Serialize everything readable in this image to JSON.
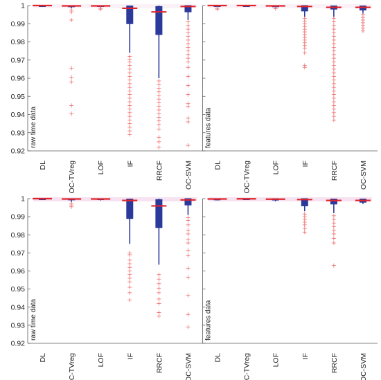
{
  "chart_data": {
    "type": "boxplot",
    "ylim": [
      0.92,
      1.0
    ],
    "yticks": [
      "0.92",
      "0.93",
      "0.94",
      "0.95",
      "0.96",
      "0.97",
      "0.98",
      "0.99",
      "1"
    ],
    "categories": [
      "DL",
      "OC-TVreg",
      "LOF",
      "IF",
      "RRCF",
      "OC-SVM"
    ],
    "rows": [
      {
        "panels": [
          {
            "ylabel": "raw time data",
            "boxes": [
              {
                "category": "DL",
                "q1": 0.9998,
                "median": 1.0,
                "q3": 1.0,
                "whisker_low": 0.9995,
                "whisker_high": 1.0,
                "outliers": []
              },
              {
                "category": "OC-TVreg",
                "q1": 0.9993,
                "median": 0.9998,
                "q3": 1.0,
                "whisker_low": 0.9985,
                "whisker_high": 1.0,
                "outliers": [
                  0.9975,
                  0.9965,
                  0.992,
                  0.9655,
                  0.9605,
                  0.958,
                  0.945,
                  0.9405
                ]
              },
              {
                "category": "LOF",
                "q1": 0.9995,
                "median": 0.9998,
                "q3": 1.0,
                "whisker_low": 0.999,
                "whisker_high": 1.0,
                "outliers": [
                  0.9985,
                  0.998
                ]
              },
              {
                "category": "IF",
                "q1": 0.99,
                "median": 0.9985,
                "q3": 0.9998,
                "whisker_low": 0.974,
                "whisker_high": 1.0,
                "outliers": [
                  0.972,
                  0.9705,
                  0.969,
                  0.967,
                  0.965,
                  0.963,
                  0.961,
                  0.959,
                  0.957,
                  0.955,
                  0.953,
                  0.951,
                  0.949,
                  0.947,
                  0.945,
                  0.943,
                  0.941,
                  0.939,
                  0.937,
                  0.935,
                  0.933,
                  0.931,
                  0.929
                ]
              },
              {
                "category": "RRCF",
                "q1": 0.984,
                "median": 0.9965,
                "q3": 0.9995,
                "whisker_low": 0.96,
                "whisker_high": 1.0,
                "outliers": [
                  0.9585,
                  0.9565,
                  0.9545,
                  0.9525,
                  0.9505,
                  0.9485,
                  0.9465,
                  0.9445,
                  0.9425,
                  0.9405,
                  0.9385,
                  0.9365,
                  0.9345,
                  0.932,
                  0.9275,
                  0.925,
                  0.922
                ]
              },
              {
                "category": "OC-SVM",
                "q1": 0.9965,
                "median": 0.9995,
                "q3": 1.0,
                "whisker_low": 0.992,
                "whisker_high": 1.0,
                "outliers": [
                  0.991,
                  0.989,
                  0.987,
                  0.985,
                  0.983,
                  0.981,
                  0.979,
                  0.977,
                  0.975,
                  0.973,
                  0.971,
                  0.969,
                  0.966,
                  0.961,
                  0.956,
                  0.951,
                  0.946,
                  0.9445,
                  0.938,
                  0.936,
                  0.923
                ]
              }
            ]
          },
          {
            "ylabel": "features data",
            "boxes": [
              {
                "category": "DL",
                "q1": 0.9997,
                "median": 1.0,
                "q3": 1.0,
                "whisker_low": 0.9993,
                "whisker_high": 1.0,
                "outliers": [
                  0.9985,
                  0.998
                ]
              },
              {
                "category": "OC-TVreg",
                "q1": 0.9999,
                "median": 1.0,
                "q3": 1.0,
                "whisker_low": 0.9998,
                "whisker_high": 1.0,
                "outliers": []
              },
              {
                "category": "LOF",
                "q1": 0.9993,
                "median": 0.9998,
                "q3": 1.0,
                "whisker_low": 0.9988,
                "whisker_high": 1.0,
                "outliers": [
                  0.9983
                ]
              },
              {
                "category": "IF",
                "q1": 0.997,
                "median": 0.9995,
                "q3": 1.0,
                "whisker_low": 0.9935,
                "whisker_high": 1.0,
                "outliers": [
                  0.993,
                  0.9915,
                  0.99,
                  0.9885,
                  0.987,
                  0.9855,
                  0.984,
                  0.9825,
                  0.981,
                  0.9795,
                  0.978,
                  0.9765,
                  0.974,
                  0.967,
                  0.966
                ]
              },
              {
                "category": "RRCF",
                "q1": 0.998,
                "median": 0.999,
                "q3": 0.9998,
                "whisker_low": 0.9935,
                "whisker_high": 1.0,
                "outliers": [
                  0.993,
                  0.991,
                  0.989,
                  0.987,
                  0.985,
                  0.983,
                  0.981,
                  0.979,
                  0.977,
                  0.975,
                  0.973,
                  0.971,
                  0.969,
                  0.967,
                  0.965,
                  0.963,
                  0.961,
                  0.959,
                  0.957,
                  0.955,
                  0.953,
                  0.951,
                  0.949,
                  0.947,
                  0.945,
                  0.943,
                  0.941,
                  0.939,
                  0.937
                ]
              },
              {
                "category": "OC-SVM",
                "q1": 0.9975,
                "median": 0.999,
                "q3": 0.9998,
                "whisker_low": 0.9955,
                "whisker_high": 1.0,
                "outliers": [
                  0.995,
                  0.9935,
                  0.992,
                  0.9905,
                  0.989,
                  0.9875,
                  0.986
                ]
              }
            ]
          }
        ]
      },
      {
        "panels": [
          {
            "ylabel": "raw time data",
            "boxes": [
              {
                "category": "DL",
                "q1": 0.9998,
                "median": 1.0,
                "q3": 1.0,
                "whisker_low": 0.9995,
                "whisker_high": 1.0,
                "outliers": []
              },
              {
                "category": "OC-TVreg",
                "q1": 0.9993,
                "median": 0.9998,
                "q3": 1.0,
                "whisker_low": 0.998,
                "whisker_high": 1.0,
                "outliers": [
                  0.9975,
                  0.9965,
                  0.9955
                ]
              },
              {
                "category": "LOF",
                "q1": 0.9995,
                "median": 0.9998,
                "q3": 1.0,
                "whisker_low": 0.999,
                "whisker_high": 1.0,
                "outliers": []
              },
              {
                "category": "IF",
                "q1": 0.989,
                "median": 0.999,
                "q3": 0.9998,
                "whisker_low": 0.975,
                "whisker_high": 1.0,
                "outliers": [
                  0.97,
                  0.969,
                  0.966,
                  0.964,
                  0.962,
                  0.96,
                  0.958,
                  0.956,
                  0.954,
                  0.951,
                  0.948,
                  0.944
                ]
              },
              {
                "category": "RRCF",
                "q1": 0.984,
                "median": 0.996,
                "q3": 0.9995,
                "whisker_low": 0.9635,
                "whisker_high": 1.0,
                "outliers": [
                  0.958,
                  0.9555,
                  0.953,
                  0.9505,
                  0.948,
                  0.9445,
                  0.942,
                  0.937,
                  0.935
                ]
              },
              {
                "category": "OC-SVM",
                "q1": 0.9965,
                "median": 0.9993,
                "q3": 1.0,
                "whisker_low": 0.991,
                "whisker_high": 1.0,
                "outliers": [
                  0.9895,
                  0.988,
                  0.9855,
                  0.9825,
                  0.9805,
                  0.9775,
                  0.9755,
                  0.9715,
                  0.9685,
                  0.9615,
                  0.9565,
                  0.9465,
                  0.936,
                  0.929
                ]
              }
            ]
          },
          {
            "ylabel": "features data",
            "boxes": [
              {
                "category": "DL",
                "q1": 0.9993,
                "median": 0.9998,
                "q3": 1.0,
                "whisker_low": 0.999,
                "whisker_high": 1.0,
                "outliers": []
              },
              {
                "category": "OC-TVreg",
                "q1": 0.9997,
                "median": 0.9999,
                "q3": 1.0,
                "whisker_low": 0.9995,
                "whisker_high": 1.0,
                "outliers": []
              },
              {
                "category": "LOF",
                "q1": 0.9992,
                "median": 0.9997,
                "q3": 1.0,
                "whisker_low": 0.9985,
                "whisker_high": 1.0,
                "outliers": []
              },
              {
                "category": "IF",
                "q1": 0.996,
                "median": 0.9995,
                "q3": 1.0,
                "whisker_low": 0.993,
                "whisker_high": 1.0,
                "outliers": [
                  0.9915,
                  0.99,
                  0.9885,
                  0.987,
                  0.9855,
                  0.9835,
                  0.9815
                ]
              },
              {
                "category": "RRCF",
                "q1": 0.997,
                "median": 0.999,
                "q3": 0.9998,
                "whisker_low": 0.992,
                "whisker_high": 1.0,
                "outliers": [
                  0.9905,
                  0.9885,
                  0.9865,
                  0.9845,
                  0.9825,
                  0.9805,
                  0.978,
                  0.9755,
                  0.963
                ]
              },
              {
                "category": "OC-SVM",
                "q1": 0.998,
                "median": 0.999,
                "q3": 0.9998,
                "whisker_low": 0.997,
                "whisker_high": 1.0,
                "outliers": []
              }
            ]
          }
        ]
      }
    ]
  },
  "colors": {
    "box": "#2b3a9a",
    "median": "#e0242a",
    "outlier": "#ee6a6a",
    "axis": "#5a5a5a",
    "shade": "#f6e2f0",
    "text": "#222222",
    "background": "#ffffff"
  }
}
